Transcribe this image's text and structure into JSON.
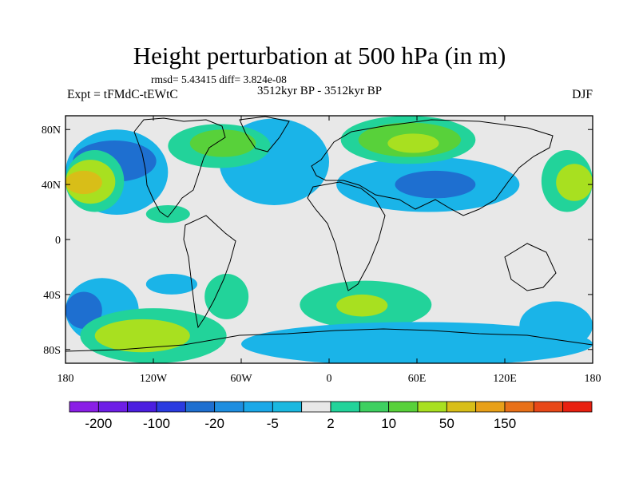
{
  "header": {
    "title": "Height perturbation at 500 hPa (in m)",
    "stats": "rmsd= 5.43415 diff= 3.824e-08",
    "experiment": "Expt = tFMdC-tEWtC",
    "period": "3512kyr BP - 3512kyr BP",
    "season": "DJF"
  },
  "map": {
    "lat_ticks": [
      "80N",
      "40N",
      "0",
      "40S",
      "80S"
    ],
    "lon_ticks": [
      "180",
      "120W",
      "60W",
      "0",
      "60E",
      "120E",
      "180"
    ],
    "background_color": "#e8e8e8",
    "contour_regions": [
      {
        "level": "neg_-5",
        "color": "#1ab4e8",
        "lon": [
          -180,
          -110
        ],
        "lat": [
          18,
          80
        ]
      },
      {
        "level": "neg_-20",
        "color": "#1e6fd0",
        "lon": [
          -175,
          -118
        ],
        "lat": [
          42,
          72
        ]
      },
      {
        "level": "neg_-5",
        "color": "#1ab4e8",
        "lon": [
          -75,
          0
        ],
        "lat": [
          25,
          88
        ]
      },
      {
        "level": "pos_2",
        "color": "#22d39a",
        "lon": [
          -110,
          -40
        ],
        "lat": [
          52,
          84
        ]
      },
      {
        "level": "pos_10",
        "color": "#58d13a",
        "lon": [
          -95,
          -50
        ],
        "lat": [
          60,
          80
        ]
      },
      {
        "level": "neg_-5",
        "color": "#1ab4e8",
        "lon": [
          5,
          130
        ],
        "lat": [
          20,
          60
        ]
      },
      {
        "level": "neg_-20",
        "color": "#1e6fd0",
        "lon": [
          45,
          100
        ],
        "lat": [
          30,
          50
        ]
      },
      {
        "level": "pos_2",
        "color": "#22d39a",
        "lon": [
          8,
          100
        ],
        "lat": [
          55,
          90
        ]
      },
      {
        "level": "pos_10",
        "color": "#58d13a",
        "lon": [
          20,
          90
        ],
        "lat": [
          60,
          85
        ]
      },
      {
        "level": "pos_20",
        "color": "#a8e020",
        "lon": [
          40,
          75
        ],
        "lat": [
          63,
          77
        ]
      },
      {
        "level": "pos_2",
        "color": "#22d39a",
        "lon": [
          -180,
          -140
        ],
        "lat": [
          20,
          65
        ]
      },
      {
        "level": "pos_20",
        "color": "#a8e020",
        "lon": [
          -180,
          -146
        ],
        "lat": [
          26,
          58
        ]
      },
      {
        "level": "pos_50",
        "color": "#d8be18",
        "lon": [
          -180,
          -155
        ],
        "lat": [
          33,
          50
        ]
      },
      {
        "level": "pos_2",
        "color": "#22d39a",
        "lon": [
          145,
          180
        ],
        "lat": [
          20,
          65
        ]
      },
      {
        "level": "pos_20",
        "color": "#a8e020",
        "lon": [
          155,
          180
        ],
        "lat": [
          28,
          55
        ]
      },
      {
        "level": "pos_2",
        "color": "#22d39a",
        "lon": [
          -125,
          -95
        ],
        "lat": [
          12,
          25
        ]
      },
      {
        "level": "neg_-5",
        "color": "#1ab4e8",
        "lon": [
          -180,
          -130
        ],
        "lat": [
          -75,
          -28
        ]
      },
      {
        "level": "neg_-20",
        "color": "#1e6fd0",
        "lon": [
          -180,
          -155
        ],
        "lat": [
          -65,
          -38
        ]
      },
      {
        "level": "pos_2",
        "color": "#22d39a",
        "lon": [
          -170,
          -70
        ],
        "lat": [
          -90,
          -50
        ]
      },
      {
        "level": "pos_20",
        "color": "#a8e020",
        "lon": [
          -160,
          -95
        ],
        "lat": [
          -82,
          -58
        ]
      },
      {
        "level": "pos_2",
        "color": "#22d39a",
        "lon": [
          -85,
          -55
        ],
        "lat": [
          -58,
          -25
        ]
      },
      {
        "level": "neg_-5",
        "color": "#1ab4e8",
        "lon": [
          -125,
          -90
        ],
        "lat": [
          -40,
          -25
        ]
      },
      {
        "level": "pos_2",
        "color": "#22d39a",
        "lon": [
          -20,
          70
        ],
        "lat": [
          -65,
          -30
        ]
      },
      {
        "level": "pos_20",
        "color": "#a8e020",
        "lon": [
          5,
          40
        ],
        "lat": [
          -56,
          -40
        ]
      },
      {
        "level": "neg_-5",
        "color": "#1ab4e8",
        "lon": [
          -60,
          180
        ],
        "lat": [
          -92,
          -60
        ]
      },
      {
        "level": "neg_-5",
        "color": "#1ab4e8",
        "lon": [
          130,
          180
        ],
        "lat": [
          -80,
          -45
        ]
      }
    ]
  },
  "colorbar": {
    "colors": [
      "#8a1ee6",
      "#6e1ee6",
      "#4b1ee0",
      "#2a3be0",
      "#1e6fd0",
      "#1e8ee0",
      "#1aa8e8",
      "#1ab8e0",
      "#e8e8e8",
      "#22d39a",
      "#3ed060",
      "#58d13a",
      "#a8e020",
      "#d8be18",
      "#e8a018",
      "#e87018",
      "#e84818",
      "#e82010"
    ],
    "labels": [
      "-200",
      "-100",
      "-20",
      "-5",
      "2",
      "10",
      "50",
      "150"
    ]
  }
}
